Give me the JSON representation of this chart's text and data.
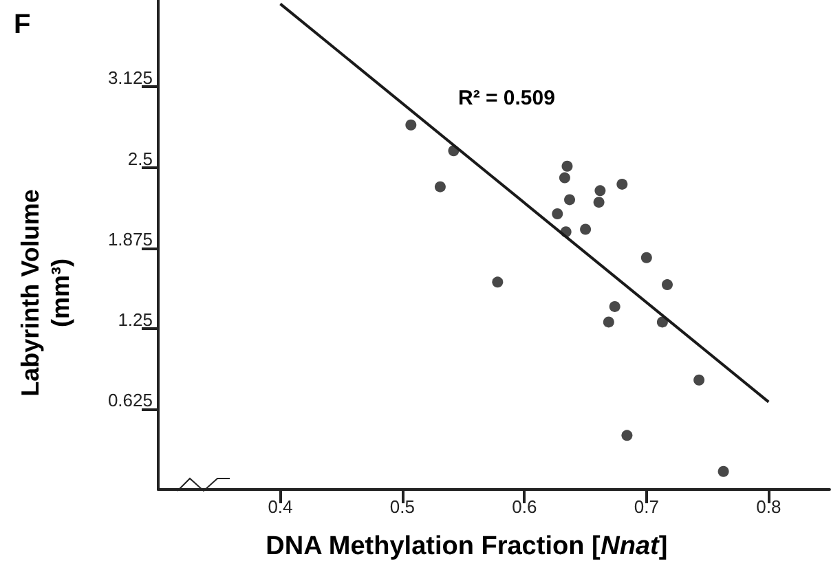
{
  "chart_data": {
    "type": "scatter",
    "xlabel": "DNA Methylation Fraction [Nnat]",
    "ylabel": "Labyrinth Volume\n(mm³)",
    "annotations": [
      "F",
      "R² = 0.509"
    ],
    "xlim": [
      0.3,
      0.85
    ],
    "xticks": [
      0.4,
      0.5,
      0.6,
      0.7,
      0.8
    ],
    "ylim": [
      0,
      3.8
    ],
    "yticks": [
      0.625,
      1.25,
      1.875,
      2.5,
      3.125
    ],
    "grid": false,
    "series": [
      {
        "color": "#1a1a1a",
        "marker": "circle",
        "x": [
          0.507,
          0.542,
          0.531,
          0.635,
          0.633,
          0.637,
          0.627,
          0.634,
          0.65,
          0.662,
          0.661,
          0.68,
          0.7,
          0.578,
          0.717,
          0.674,
          0.669,
          0.713,
          0.743,
          0.684,
          0.763
        ],
        "values": [
          2.83,
          2.63,
          2.35,
          2.51,
          2.42,
          2.25,
          2.14,
          2.0,
          2.02,
          2.32,
          2.23,
          2.37,
          1.8,
          1.61,
          1.59,
          1.42,
          1.3,
          1.3,
          0.85,
          0.42,
          0.14
        ]
      },
      {
        "type": "line",
        "color": "#1a1a1a",
        "marker": "none",
        "x": [
          0.4,
          0.8
        ],
        "values": [
          3.77,
          0.68
        ]
      }
    ]
  }
}
